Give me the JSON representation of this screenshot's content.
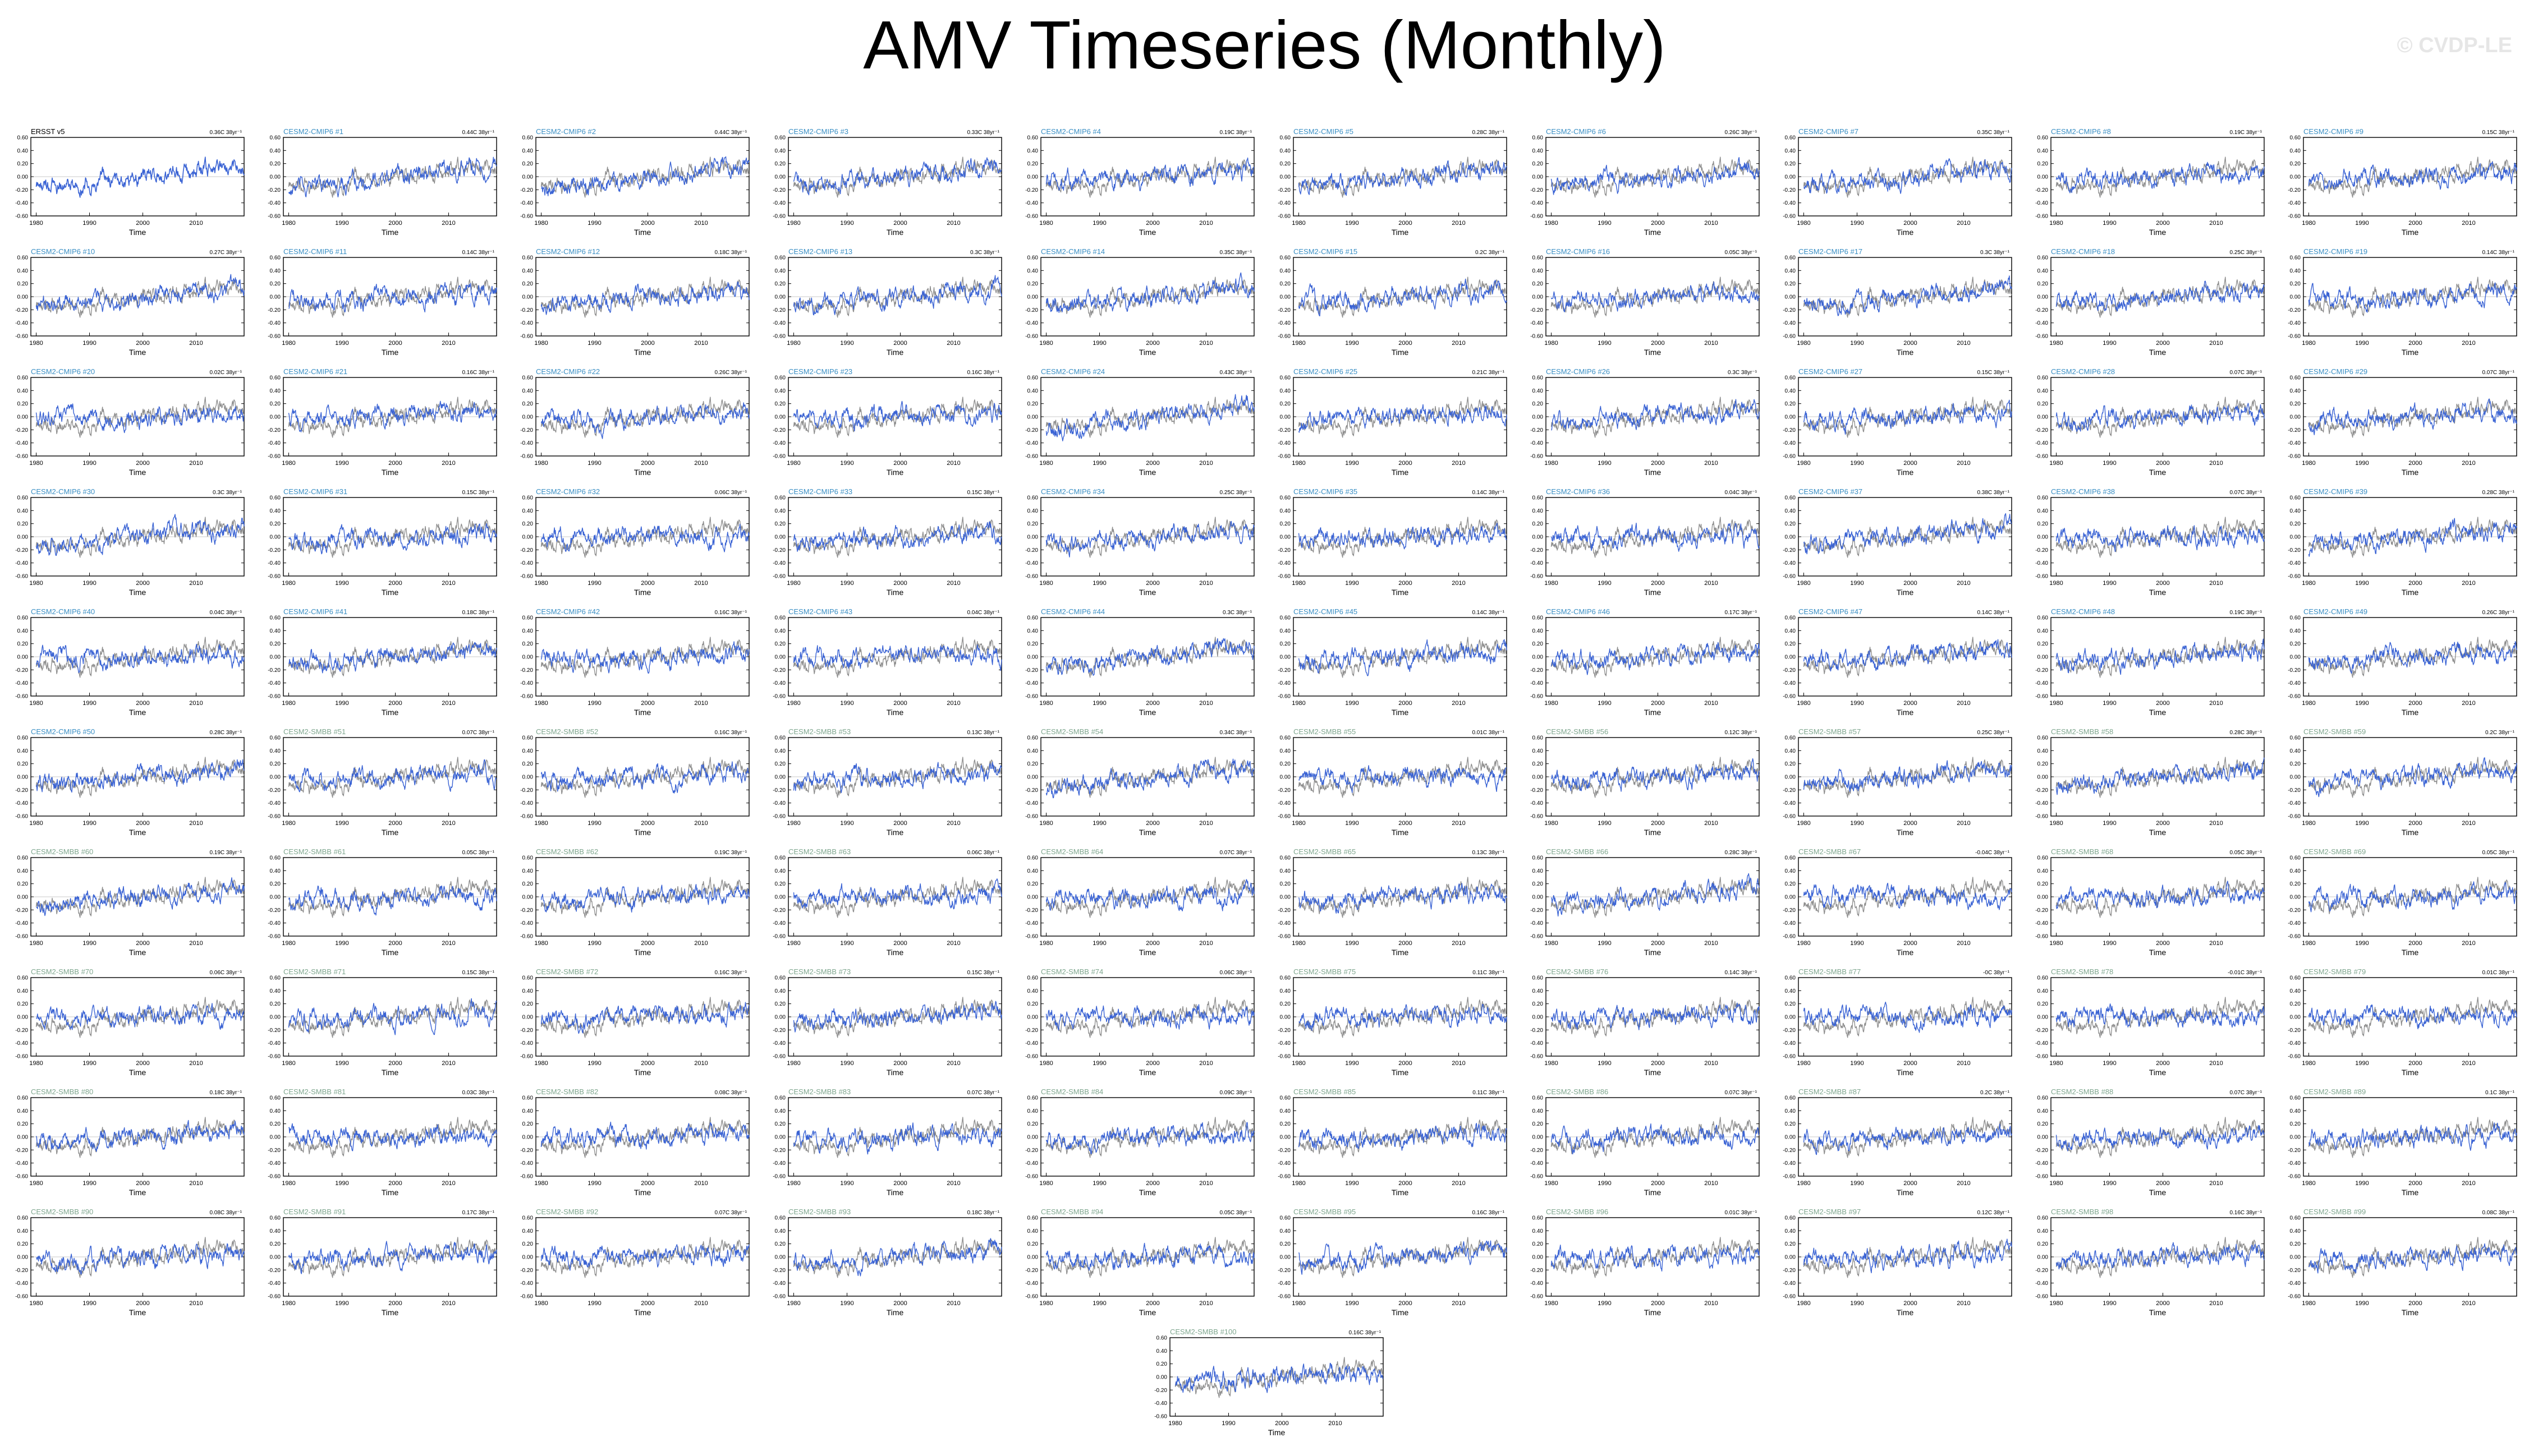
{
  "page": {
    "title": "AMV Timeseries (Monthly)",
    "watermark": "© CVDP-LE"
  },
  "colors": {
    "background": "#ffffff",
    "axis": "#000000",
    "observed_line": "#8c8c8c",
    "model_line": "#3a63d4",
    "cmip6_label": "#3a8fc4",
    "smbb_label": "#7fa78f",
    "obs_label": "#000000",
    "zero_line": "#c9c9c9"
  },
  "chart_data": {
    "type": "line",
    "description_units": "°C",
    "x_ticks": [
      "1980",
      "1990",
      "2000",
      "2010"
    ],
    "xlim": [
      1979,
      2019
    ],
    "ylim": [
      -0.6,
      0.6
    ],
    "y_ticks": [
      "0.60",
      "0.40",
      "0.20",
      "0.00",
      "-0.20",
      "-0.40",
      "-0.60"
    ],
    "xlabel": "Time",
    "panels": [
      {
        "name": "ERSST v5",
        "group": "obs",
        "trend": "0.36C 38yr⁻¹"
      },
      {
        "name": "CESM2-CMIP6 #1",
        "group": "cmip6",
        "trend": "0.44C 38yr⁻¹"
      },
      {
        "name": "CESM2-CMIP6 #2",
        "group": "cmip6",
        "trend": "0.44C 38yr⁻¹"
      },
      {
        "name": "CESM2-CMIP6 #3",
        "group": "cmip6",
        "trend": "0.33C 38yr⁻¹"
      },
      {
        "name": "CESM2-CMIP6 #4",
        "group": "cmip6",
        "trend": "0.19C 38yr⁻¹"
      },
      {
        "name": "CESM2-CMIP6 #5",
        "group": "cmip6",
        "trend": "0.28C 38yr⁻¹"
      },
      {
        "name": "CESM2-CMIP6 #6",
        "group": "cmip6",
        "trend": "0.26C 38yr⁻¹"
      },
      {
        "name": "CESM2-CMIP6 #7",
        "group": "cmip6",
        "trend": "0.35C 38yr⁻¹"
      },
      {
        "name": "CESM2-CMIP6 #8",
        "group": "cmip6",
        "trend": "0.19C 38yr⁻¹"
      },
      {
        "name": "CESM2-CMIP6 #9",
        "group": "cmip6",
        "trend": "0.15C 38yr⁻¹"
      },
      {
        "name": "CESM2-CMIP6 #10",
        "group": "cmip6",
        "trend": "0.27C 38yr⁻¹"
      },
      {
        "name": "CESM2-CMIP6 #11",
        "group": "cmip6",
        "trend": "0.14C 38yr⁻¹"
      },
      {
        "name": "CESM2-CMIP6 #12",
        "group": "cmip6",
        "trend": "0.18C 38yr⁻¹"
      },
      {
        "name": "CESM2-CMIP6 #13",
        "group": "cmip6",
        "trend": "0.3C 38yr⁻¹"
      },
      {
        "name": "CESM2-CMIP6 #14",
        "group": "cmip6",
        "trend": "0.35C 38yr⁻¹"
      },
      {
        "name": "CESM2-CMIP6 #15",
        "group": "cmip6",
        "trend": "0.2C 38yr⁻¹"
      },
      {
        "name": "CESM2-CMIP6 #16",
        "group": "cmip6",
        "trend": "0.05C 38yr⁻¹"
      },
      {
        "name": "CESM2-CMIP6 #17",
        "group": "cmip6",
        "trend": "0.3C 38yr⁻¹"
      },
      {
        "name": "CESM2-CMIP6 #18",
        "group": "cmip6",
        "trend": "0.25C 38yr⁻¹"
      },
      {
        "name": "CESM2-CMIP6 #19",
        "group": "cmip6",
        "trend": "0.14C 38yr⁻¹"
      },
      {
        "name": "CESM2-CMIP6 #20",
        "group": "cmip6",
        "trend": "0.02C 38yr⁻¹"
      },
      {
        "name": "CESM2-CMIP6 #21",
        "group": "cmip6",
        "trend": "0.16C 38yr⁻¹"
      },
      {
        "name": "CESM2-CMIP6 #22",
        "group": "cmip6",
        "trend": "0.26C 38yr⁻¹"
      },
      {
        "name": "CESM2-CMIP6 #23",
        "group": "cmip6",
        "trend": "0.16C 38yr⁻¹"
      },
      {
        "name": "CESM2-CMIP6 #24",
        "group": "cmip6",
        "trend": "0.43C 38yr⁻¹"
      },
      {
        "name": "CESM2-CMIP6 #25",
        "group": "cmip6",
        "trend": "0.21C 38yr⁻¹"
      },
      {
        "name": "CESM2-CMIP6 #26",
        "group": "cmip6",
        "trend": "0.3C 38yr⁻¹"
      },
      {
        "name": "CESM2-CMIP6 #27",
        "group": "cmip6",
        "trend": "0.15C 38yr⁻¹"
      },
      {
        "name": "CESM2-CMIP6 #28",
        "group": "cmip6",
        "trend": "0.07C 38yr⁻¹"
      },
      {
        "name": "CESM2-CMIP6 #29",
        "group": "cmip6",
        "trend": "0.07C 38yr⁻¹"
      },
      {
        "name": "CESM2-CMIP6 #30",
        "group": "cmip6",
        "trend": "0.3C 38yr⁻¹"
      },
      {
        "name": "CESM2-CMIP6 #31",
        "group": "cmip6",
        "trend": "0.15C 38yr⁻¹"
      },
      {
        "name": "CESM2-CMIP6 #32",
        "group": "cmip6",
        "trend": "0.06C 38yr⁻¹"
      },
      {
        "name": "CESM2-CMIP6 #33",
        "group": "cmip6",
        "trend": "0.15C 38yr⁻¹"
      },
      {
        "name": "CESM2-CMIP6 #34",
        "group": "cmip6",
        "trend": "0.25C 38yr⁻¹"
      },
      {
        "name": "CESM2-CMIP6 #35",
        "group": "cmip6",
        "trend": "0.14C 38yr⁻¹"
      },
      {
        "name": "CESM2-CMIP6 #36",
        "group": "cmip6",
        "trend": "0.04C 38yr⁻¹"
      },
      {
        "name": "CESM2-CMIP6 #37",
        "group": "cmip6",
        "trend": "0.38C 38yr⁻¹"
      },
      {
        "name": "CESM2-CMIP6 #38",
        "group": "cmip6",
        "trend": "0.07C 38yr⁻¹"
      },
      {
        "name": "CESM2-CMIP6 #39",
        "group": "cmip6",
        "trend": "0.28C 38yr⁻¹"
      },
      {
        "name": "CESM2-CMIP6 #40",
        "group": "cmip6",
        "trend": "0.04C 38yr⁻¹"
      },
      {
        "name": "CESM2-CMIP6 #41",
        "group": "cmip6",
        "trend": "0.18C 38yr⁻¹"
      },
      {
        "name": "CESM2-CMIP6 #42",
        "group": "cmip6",
        "trend": "0.16C 38yr⁻¹"
      },
      {
        "name": "CESM2-CMIP6 #43",
        "group": "cmip6",
        "trend": "0.04C 38yr⁻¹"
      },
      {
        "name": "CESM2-CMIP6 #44",
        "group": "cmip6",
        "trend": "0.3C 38yr⁻¹"
      },
      {
        "name": "CESM2-CMIP6 #45",
        "group": "cmip6",
        "trend": "0.14C 38yr⁻¹"
      },
      {
        "name": "CESM2-CMIP6 #46",
        "group": "cmip6",
        "trend": "0.17C 38yr⁻¹"
      },
      {
        "name": "CESM2-CMIP6 #47",
        "group": "cmip6",
        "trend": "0.14C 38yr⁻¹"
      },
      {
        "name": "CESM2-CMIP6 #48",
        "group": "cmip6",
        "trend": "0.19C 38yr⁻¹"
      },
      {
        "name": "CESM2-CMIP6 #49",
        "group": "cmip6",
        "trend": "0.26C 38yr⁻¹"
      },
      {
        "name": "CESM2-CMIP6 #50",
        "group": "cmip6",
        "trend": "0.28C 38yr⁻¹"
      },
      {
        "name": "CESM2-SMBB #51",
        "group": "smbb",
        "trend": "0.07C 38yr⁻¹"
      },
      {
        "name": "CESM2-SMBB #52",
        "group": "smbb",
        "trend": "0.16C 38yr⁻¹"
      },
      {
        "name": "CESM2-SMBB #53",
        "group": "smbb",
        "trend": "0.13C 38yr⁻¹"
      },
      {
        "name": "CESM2-SMBB #54",
        "group": "smbb",
        "trend": "0.34C 38yr⁻¹"
      },
      {
        "name": "CESM2-SMBB #55",
        "group": "smbb",
        "trend": "0.01C 38yr⁻¹"
      },
      {
        "name": "CESM2-SMBB #56",
        "group": "smbb",
        "trend": "0.12C 38yr⁻¹"
      },
      {
        "name": "CESM2-SMBB #57",
        "group": "smbb",
        "trend": "0.25C 38yr⁻¹"
      },
      {
        "name": "CESM2-SMBB #58",
        "group": "smbb",
        "trend": "0.28C 38yr⁻¹"
      },
      {
        "name": "CESM2-SMBB #59",
        "group": "smbb",
        "trend": "0.2C 38yr⁻¹"
      },
      {
        "name": "CESM2-SMBB #60",
        "group": "smbb",
        "trend": "0.19C 38yr⁻¹"
      },
      {
        "name": "CESM2-SMBB #61",
        "group": "smbb",
        "trend": "0.05C 38yr⁻¹"
      },
      {
        "name": "CESM2-SMBB #62",
        "group": "smbb",
        "trend": "0.19C 38yr⁻¹"
      },
      {
        "name": "CESM2-SMBB #63",
        "group": "smbb",
        "trend": "0.06C 38yr⁻¹"
      },
      {
        "name": "CESM2-SMBB #64",
        "group": "smbb",
        "trend": "0.07C 38yr⁻¹"
      },
      {
        "name": "CESM2-SMBB #65",
        "group": "smbb",
        "trend": "0.13C 38yr⁻¹"
      },
      {
        "name": "CESM2-SMBB #66",
        "group": "smbb",
        "trend": "0.28C 38yr⁻¹"
      },
      {
        "name": "CESM2-SMBB #67",
        "group": "smbb",
        "trend": "-0.04C 38yr⁻¹"
      },
      {
        "name": "CESM2-SMBB #68",
        "group": "smbb",
        "trend": "0.05C 38yr⁻¹"
      },
      {
        "name": "CESM2-SMBB #69",
        "group": "smbb",
        "trend": "0.05C 38yr⁻¹"
      },
      {
        "name": "CESM2-SMBB #70",
        "group": "smbb",
        "trend": "0.06C 38yr⁻¹"
      },
      {
        "name": "CESM2-SMBB #71",
        "group": "smbb",
        "trend": "0.15C 38yr⁻¹"
      },
      {
        "name": "CESM2-SMBB #72",
        "group": "smbb",
        "trend": "0.16C 38yr⁻¹"
      },
      {
        "name": "CESM2-SMBB #73",
        "group": "smbb",
        "trend": "0.15C 38yr⁻¹"
      },
      {
        "name": "CESM2-SMBB #74",
        "group": "smbb",
        "trend": "0.06C 38yr⁻¹"
      },
      {
        "name": "CESM2-SMBB #75",
        "group": "smbb",
        "trend": "0.11C 38yr⁻¹"
      },
      {
        "name": "CESM2-SMBB #76",
        "group": "smbb",
        "trend": "0.14C 38yr⁻¹"
      },
      {
        "name": "CESM2-SMBB #77",
        "group": "smbb",
        "trend": "-0C 38yr⁻¹"
      },
      {
        "name": "CESM2-SMBB #78",
        "group": "smbb",
        "trend": "-0.01C 38yr⁻¹"
      },
      {
        "name": "CESM2-SMBB #79",
        "group": "smbb",
        "trend": "0.01C 38yr⁻¹"
      },
      {
        "name": "CESM2-SMBB #80",
        "group": "smbb",
        "trend": "0.18C 38yr⁻¹"
      },
      {
        "name": "CESM2-SMBB #81",
        "group": "smbb",
        "trend": "0.03C 38yr⁻¹"
      },
      {
        "name": "CESM2-SMBB #82",
        "group": "smbb",
        "trend": "0.08C 38yr⁻¹"
      },
      {
        "name": "CESM2-SMBB #83",
        "group": "smbb",
        "trend": "0.07C 38yr⁻¹"
      },
      {
        "name": "CESM2-SMBB #84",
        "group": "smbb",
        "trend": "0.09C 38yr⁻¹"
      },
      {
        "name": "CESM2-SMBB #85",
        "group": "smbb",
        "trend": "0.11C 38yr⁻¹"
      },
      {
        "name": "CESM2-SMBB #86",
        "group": "smbb",
        "trend": "0.07C 38yr⁻¹"
      },
      {
        "name": "CESM2-SMBB #87",
        "group": "smbb",
        "trend": "0.2C 38yr⁻¹"
      },
      {
        "name": "CESM2-SMBB #88",
        "group": "smbb",
        "trend": "0.07C 38yr⁻¹"
      },
      {
        "name": "CESM2-SMBB #89",
        "group": "smbb",
        "trend": "0.1C 38yr⁻¹"
      },
      {
        "name": "CESM2-SMBB #90",
        "group": "smbb",
        "trend": "0.08C 38yr⁻¹"
      },
      {
        "name": "CESM2-SMBB #91",
        "group": "smbb",
        "trend": "0.17C 38yr⁻¹"
      },
      {
        "name": "CESM2-SMBB #92",
        "group": "smbb",
        "trend": "0.07C 38yr⁻¹"
      },
      {
        "name": "CESM2-SMBB #93",
        "group": "smbb",
        "trend": "0.18C 38yr⁻¹"
      },
      {
        "name": "CESM2-SMBB #94",
        "group": "smbb",
        "trend": "0.05C 38yr⁻¹"
      },
      {
        "name": "CESM2-SMBB #95",
        "group": "smbb",
        "trend": "0.16C 38yr⁻¹"
      },
      {
        "name": "CESM2-SMBB #96",
        "group": "smbb",
        "trend": "0.01C 38yr⁻¹"
      },
      {
        "name": "CESM2-SMBB #97",
        "group": "smbb",
        "trend": "0.12C 38yr⁻¹"
      },
      {
        "name": "CESM2-SMBB #98",
        "group": "smbb",
        "trend": "0.16C 38yr⁻¹"
      },
      {
        "name": "CESM2-SMBB #99",
        "group": "smbb",
        "trend": "0.08C 38yr⁻¹"
      },
      {
        "name": "CESM2-SMBB #100",
        "group": "smbb",
        "trend": "0.16C 38yr⁻¹"
      }
    ]
  }
}
